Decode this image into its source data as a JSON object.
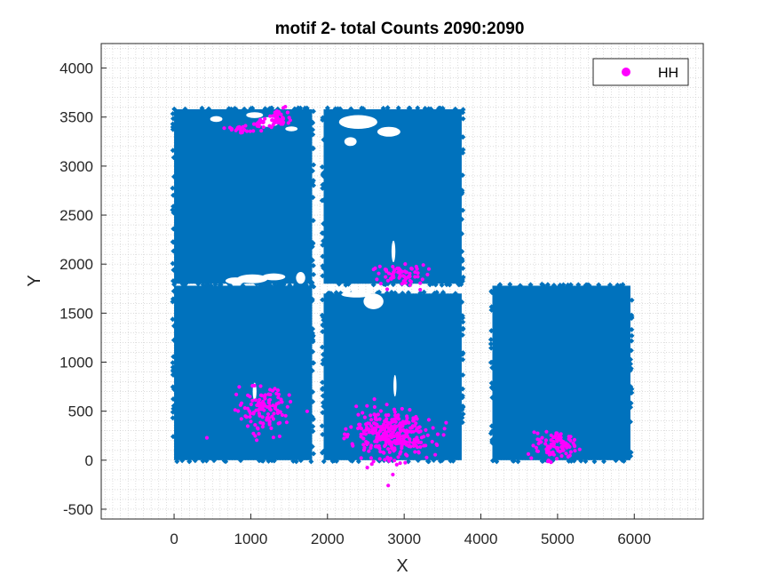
{
  "chart_data": {
    "type": "scatter",
    "title": "motif 2- total Counts 2090:2090",
    "xlabel": "X",
    "ylabel": "Y",
    "xlim": [
      -950,
      6900
    ],
    "ylim": [
      -600,
      4250
    ],
    "xticks": [
      0,
      1000,
      2000,
      3000,
      4000,
      5000,
      6000
    ],
    "yticks": [
      -500,
      0,
      500,
      1000,
      1500,
      2000,
      2500,
      3000,
      3500,
      4000
    ],
    "grid": "minor dotted",
    "legend_position": "top-right",
    "background_colors": {
      "cells": "#0072bd"
    },
    "series": [
      {
        "name": "HH",
        "color": "#ff00ff",
        "marker": "filled-circle",
        "point_count": 2090,
        "clusters": [
          {
            "cx": 1180,
            "cy": 520,
            "sx": 220,
            "sy": 150,
            "n": 120
          },
          {
            "cx": 2850,
            "cy": 260,
            "sx": 320,
            "sy": 160,
            "n": 330
          },
          {
            "cx": 4950,
            "cy": 150,
            "sx": 170,
            "sy": 100,
            "n": 90
          },
          {
            "cx": 2960,
            "cy": 1890,
            "sx": 200,
            "sy": 70,
            "n": 70
          },
          {
            "cx": 1380,
            "cy": 3490,
            "sx": 110,
            "sy": 50,
            "n": 45
          },
          {
            "cx": 830,
            "cy": 3370,
            "sx": 120,
            "sy": 25,
            "n": 20
          },
          {
            "cx": 1100,
            "cy": 3430,
            "sx": 60,
            "sy": 40,
            "n": 15
          }
        ]
      }
    ],
    "regions": [
      {
        "x0": 0,
        "x1": 1800,
        "y0": 0,
        "y1": 1780
      },
      {
        "x0": 0,
        "x1": 1800,
        "y0": 1800,
        "y1": 3580
      },
      {
        "x0": 1950,
        "x1": 3750,
        "y0": 0,
        "y1": 1700
      },
      {
        "x0": 1950,
        "x1": 3750,
        "y0": 1800,
        "y1": 3580
      },
      {
        "x0": 4150,
        "x1": 5950,
        "y0": 0,
        "y1": 1780
      }
    ]
  }
}
